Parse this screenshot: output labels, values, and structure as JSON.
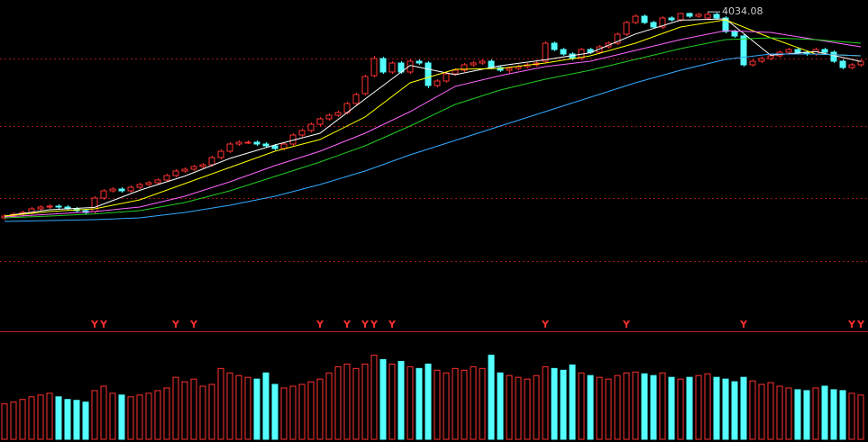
{
  "chart_data": {
    "type": "candlestick",
    "high_label": "4034.08",
    "ylim": [
      2600,
      4100
    ],
    "yticks": [
      2650,
      3000,
      3400,
      3775
    ],
    "up_color": "#ff3232",
    "down_color": "#54ffff",
    "grid_color": "#a01818",
    "candles": {
      "open": [
        2890,
        2900,
        2910,
        2920,
        2940,
        2950,
        2955,
        2950,
        2940,
        2930,
        2925,
        3000,
        3040,
        3050,
        3040,
        3060,
        3075,
        3085,
        3100,
        3125,
        3150,
        3160,
        3175,
        3185,
        3225,
        3260,
        3300,
        3310,
        3310,
        3300,
        3290,
        3275,
        3300,
        3350,
        3375,
        3410,
        3440,
        3460,
        3475,
        3525,
        3580,
        3680,
        3775,
        3700,
        3750,
        3700,
        3760,
        3750,
        3625,
        3650,
        3690,
        3710,
        3740,
        3750,
        3760,
        3725,
        3710,
        3720,
        3730,
        3740,
        3760,
        3860,
        3825,
        3800,
        3775,
        3825,
        3810,
        3840,
        3860,
        3910,
        3975,
        4010,
        3975,
        3950,
        4000,
        3990,
        4025,
        4010,
        4000,
        4020,
        4000,
        3925,
        3900,
        3740,
        3760,
        3775,
        3790,
        3810,
        3825,
        3810,
        3800,
        3825,
        3810,
        3760,
        3725,
        3740
      ],
      "high": [
        2910,
        2920,
        2930,
        2950,
        2960,
        2965,
        2965,
        2960,
        2950,
        2940,
        3010,
        3050,
        3060,
        3060,
        3070,
        3085,
        3095,
        3110,
        3135,
        3160,
        3170,
        3185,
        3195,
        3235,
        3270,
        3310,
        3320,
        3320,
        3320,
        3310,
        3300,
        3310,
        3360,
        3385,
        3420,
        3450,
        3470,
        3485,
        3535,
        3585,
        3685,
        3790,
        3785,
        3760,
        3760,
        3770,
        3770,
        3760,
        3660,
        3700,
        3720,
        3750,
        3760,
        3770,
        3770,
        3735,
        3730,
        3740,
        3750,
        3760,
        3870,
        3870,
        3835,
        3810,
        3835,
        3835,
        3850,
        3870,
        3920,
        3985,
        4020,
        4020,
        3985,
        4010,
        4010,
        4030,
        4030,
        4028,
        4034.08,
        4030,
        4010,
        3935,
        3910,
        3770,
        3785,
        3800,
        3820,
        3835,
        3835,
        3820,
        3835,
        3835,
        3820,
        3770,
        3750,
        3770
      ],
      "low": [
        2880,
        2890,
        2900,
        2910,
        2930,
        2940,
        2940,
        2930,
        2920,
        2910,
        2915,
        2990,
        3030,
        3030,
        3030,
        3050,
        3065,
        3075,
        3090,
        3115,
        3140,
        3150,
        3165,
        3175,
        3215,
        3250,
        3290,
        3300,
        3290,
        3280,
        3265,
        3265,
        3290,
        3340,
        3365,
        3400,
        3430,
        3450,
        3465,
        3515,
        3570,
        3670,
        3690,
        3690,
        3690,
        3690,
        3740,
        3610,
        3615,
        3640,
        3680,
        3700,
        3730,
        3740,
        3715,
        3700,
        3690,
        3710,
        3720,
        3730,
        3750,
        3815,
        3790,
        3765,
        3765,
        3800,
        3800,
        3830,
        3850,
        3900,
        3965,
        3965,
        3940,
        3940,
        3980,
        3980,
        4000,
        4000,
        3990,
        3990,
        3915,
        3890,
        3730,
        3730,
        3750,
        3765,
        3780,
        3800,
        3800,
        3790,
        3790,
        3800,
        3750,
        3715,
        3715,
        3730
      ],
      "close": [
        2900,
        2910,
        2920,
        2940,
        2950,
        2955,
        2950,
        2940,
        2930,
        2920,
        3000,
        3040,
        3050,
        3040,
        3060,
        3075,
        3085,
        3100,
        3125,
        3150,
        3160,
        3175,
        3185,
        3225,
        3260,
        3300,
        3310,
        3310,
        3300,
        3290,
        3275,
        3300,
        3350,
        3375,
        3410,
        3440,
        3460,
        3475,
        3525,
        3575,
        3675,
        3775,
        3700,
        3750,
        3700,
        3760,
        3750,
        3625,
        3650,
        3690,
        3710,
        3740,
        3750,
        3760,
        3725,
        3710,
        3720,
        3730,
        3740,
        3750,
        3860,
        3825,
        3800,
        3775,
        3825,
        3810,
        3840,
        3860,
        3910,
        3975,
        4010,
        3975,
        3950,
        4000,
        3990,
        4025,
        4010,
        4020,
        4020,
        4000,
        3925,
        3900,
        3740,
        3760,
        3775,
        3790,
        3810,
        3825,
        3810,
        3800,
        3825,
        3810,
        3760,
        3725,
        3740,
        3760
      ]
    },
    "ma_x": [
      0,
      5,
      10,
      15,
      20,
      25,
      30,
      35,
      40,
      45,
      50,
      55,
      60,
      65,
      70,
      75,
      80,
      85,
      90,
      95
    ],
    "ma": [
      {
        "color": "#ffffff",
        "values": [
          2900,
          2935,
          2948,
          3043,
          3122,
          3220,
          3295,
          3360,
          3550,
          3737,
          3685,
          3735,
          3768,
          3807,
          3911,
          3988,
          3995,
          3793,
          3814,
          3759
        ]
      },
      {
        "color": "#ffff00",
        "values": [
          2900,
          2925,
          2940,
          2990,
          3080,
          3170,
          3260,
          3325,
          3450,
          3640,
          3715,
          3720,
          3750,
          3790,
          3860,
          3950,
          3990,
          3890,
          3800,
          3790
        ]
      },
      {
        "color": "#ff66ff",
        "values": [
          2895,
          2910,
          2925,
          2950,
          3010,
          3090,
          3180,
          3260,
          3360,
          3480,
          3620,
          3680,
          3730,
          3760,
          3820,
          3880,
          3930,
          3920,
          3880,
          3840
        ]
      },
      {
        "color": "#22cc22",
        "values": [
          2890,
          2900,
          2912,
          2930,
          2975,
          3040,
          3120,
          3200,
          3290,
          3400,
          3520,
          3600,
          3660,
          3710,
          3770,
          3830,
          3880,
          3890,
          3880,
          3860
        ]
      },
      {
        "color": "#33aaff",
        "values": [
          2870,
          2875,
          2880,
          2890,
          2920,
          2960,
          3010,
          3075,
          3150,
          3240,
          3320,
          3400,
          3480,
          3560,
          3640,
          3710,
          3770,
          3800,
          3800,
          3790
        ]
      }
    ],
    "volume_ylim": [
      0,
      120
    ],
    "volumes": [
      40,
      42,
      45,
      48,
      50,
      52,
      48,
      45,
      44,
      42,
      55,
      60,
      52,
      50,
      48,
      50,
      52,
      55,
      58,
      70,
      65,
      68,
      60,
      62,
      80,
      75,
      72,
      70,
      68,
      75,
      62,
      58,
      60,
      62,
      65,
      68,
      75,
      82,
      85,
      80,
      85,
      95,
      90,
      85,
      88,
      82,
      80,
      85,
      78,
      75,
      80,
      78,
      82,
      80,
      95,
      75,
      72,
      70,
      68,
      72,
      82,
      80,
      78,
      84,
      75,
      72,
      70,
      68,
      72,
      75,
      76,
      74,
      72,
      75,
      70,
      68,
      70,
      72,
      74,
      70,
      68,
      65,
      70,
      66,
      62,
      64,
      60,
      58,
      56,
      55,
      58,
      60,
      56,
      55,
      52,
      50
    ],
    "signals": [
      null,
      null,
      null,
      null,
      null,
      null,
      null,
      null,
      null,
      null,
      "Y",
      "Y",
      null,
      null,
      null,
      null,
      null,
      null,
      null,
      "Y",
      null,
      "Y",
      null,
      null,
      null,
      null,
      null,
      null,
      null,
      null,
      null,
      null,
      null,
      null,
      null,
      "Y",
      null,
      null,
      "Y",
      null,
      "Y",
      "Y",
      null,
      "Y",
      null,
      null,
      null,
      null,
      null,
      null,
      null,
      null,
      null,
      null,
      null,
      null,
      null,
      null,
      null,
      null,
      "Y",
      null,
      null,
      null,
      null,
      null,
      null,
      null,
      null,
      "Y",
      null,
      null,
      null,
      null,
      null,
      null,
      null,
      null,
      null,
      null,
      null,
      null,
      "Y",
      null,
      null,
      null,
      null,
      null,
      null,
      null,
      null,
      null,
      null,
      null,
      "Y",
      "Y"
    ]
  }
}
